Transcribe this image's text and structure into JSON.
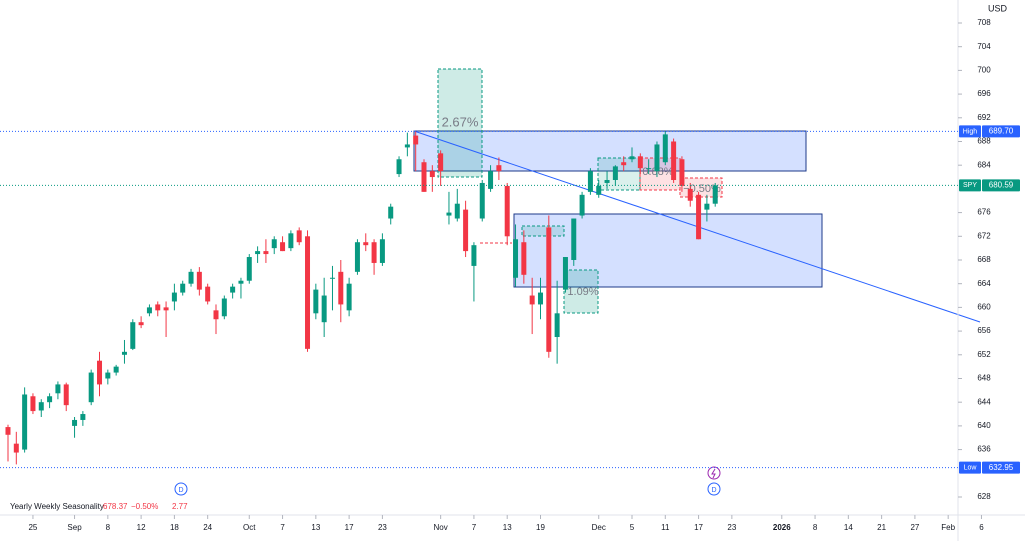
{
  "chart_data": {
    "type": "candlestick",
    "currency": "USD",
    "up_color": "#089981",
    "down_color": "#f23645",
    "grid": false,
    "series": {
      "open": [
        639.8,
        637,
        636,
        645,
        642.6,
        644,
        645.5,
        647,
        640,
        641,
        644,
        651,
        648,
        649,
        652,
        653,
        657.5,
        659,
        660.5,
        660,
        661,
        662.5,
        664,
        666,
        663.5,
        659.5,
        658.5,
        662.5,
        664,
        664.5,
        669,
        669.5,
        670,
        671,
        670,
        673,
        672,
        659,
        657.5,
        665,
        666,
        659.5,
        666,
        671,
        671,
        667.5,
        675,
        682.5,
        687,
        689,
        684.5,
        683,
        686,
        675.5,
        675,
        676.5,
        667,
        675,
        680,
        684,
        680.5,
        665,
        671,
        662,
        660.5,
        673.5,
        655,
        663,
        668,
        675.5,
        679.5,
        679,
        681,
        681.5,
        684.5,
        685,
        685.5,
        683.5,
        683,
        684.5,
        688,
        685,
        680,
        679,
        676.5,
        677.5
      ],
      "high": [
        640.2,
        639,
        646.5,
        645.5,
        644.5,
        645.5,
        647.5,
        647.3,
        641.5,
        642.5,
        649.5,
        652.5,
        649.5,
        650.3,
        654.5,
        658,
        658.5,
        660.5,
        661,
        661,
        664,
        664.5,
        666.5,
        666.8,
        664,
        660.5,
        662,
        664,
        665,
        669,
        670.3,
        671.5,
        672,
        672,
        673,
        673.5,
        673,
        664,
        665,
        667,
        668,
        665,
        671.5,
        672.5,
        671.5,
        672.5,
        677.5,
        685.5,
        689.5,
        689.7,
        685,
        684,
        686.5,
        679.5,
        680,
        678,
        671,
        681.5,
        684,
        685.3,
        681,
        674,
        673,
        665,
        665,
        675.5,
        664.5,
        668.5,
        675,
        679.5,
        683.5,
        681.5,
        683,
        684,
        685.5,
        687,
        686,
        685,
        688,
        689.7,
        688.5,
        685.5,
        681,
        679.5,
        679,
        681
      ],
      "low": [
        634,
        633.5,
        635.5,
        642,
        641.5,
        643,
        644.5,
        642.5,
        638,
        640,
        643.5,
        645,
        647,
        648.5,
        650.5,
        652.8,
        656.5,
        658.5,
        658.5,
        655,
        659.5,
        662,
        663.5,
        662,
        660.5,
        655.5,
        658,
        661.5,
        661.5,
        664,
        667.5,
        667.5,
        669,
        669.5,
        669.5,
        670.5,
        652.5,
        658,
        655,
        659.5,
        657.5,
        658.5,
        665.5,
        669.5,
        665.5,
        667,
        674,
        682,
        685.5,
        683,
        679.5,
        679.5,
        680.5,
        674,
        674.5,
        668.5,
        661,
        674.5,
        679.5,
        681.5,
        670.5,
        663.5,
        664,
        655.5,
        658,
        651.5,
        650.5,
        662.5,
        667,
        675,
        679,
        678.5,
        680,
        680.5,
        683,
        684.5,
        682.5,
        682.5,
        682,
        684,
        681,
        679.5,
        677,
        671.5,
        674.5,
        677
      ],
      "close": [
        638.5,
        635.5,
        645.3,
        642.5,
        644,
        645,
        647,
        643.5,
        641,
        642,
        649,
        647,
        649,
        650,
        652.5,
        657.5,
        657,
        660,
        659.5,
        659.5,
        662.5,
        664,
        666,
        663,
        661,
        658,
        661.5,
        663.5,
        664.5,
        668.5,
        669.5,
        669,
        671.5,
        669.5,
        672.5,
        671,
        653,
        663,
        662,
        665,
        660.5,
        664,
        671,
        670.5,
        667.5,
        671.5,
        677,
        685,
        687.5,
        687.5,
        679.5,
        682,
        683,
        676,
        677.5,
        669.5,
        670.5,
        681,
        683,
        683,
        672,
        671.5,
        665.5,
        660.5,
        662.5,
        652.5,
        659,
        668.5,
        675,
        679,
        683,
        680.5,
        681.5,
        683.8,
        684,
        685.5,
        683.5,
        683.5,
        687.5,
        689.2,
        681.5,
        680.5,
        678,
        671.5,
        677.5,
        680.59
      ]
    },
    "ylim": [
      624.96,
      711.88
    ],
    "yticks": [
      708,
      704,
      700,
      696,
      692,
      688,
      684,
      676,
      672,
      668,
      664,
      660,
      656,
      652,
      648,
      644,
      640,
      636,
      628
    ],
    "xlim": [
      -0.96,
      114.18
    ],
    "xticks": [
      {
        "value": 3,
        "label": "25"
      },
      {
        "value": 8,
        "label": "Sep"
      },
      {
        "value": 12,
        "label": "8"
      },
      {
        "value": 16,
        "label": "12"
      },
      {
        "value": 20,
        "label": "18"
      },
      {
        "value": 24,
        "label": "24"
      },
      {
        "value": 29,
        "label": "Oct"
      },
      {
        "value": 33,
        "label": "7"
      },
      {
        "value": 37,
        "label": "13"
      },
      {
        "value": 41,
        "label": "17"
      },
      {
        "value": 45,
        "label": "23"
      },
      {
        "value": 52,
        "label": "Nov"
      },
      {
        "value": 56,
        "label": "7"
      },
      {
        "value": 60,
        "label": "13"
      },
      {
        "value": 64,
        "label": "19"
      },
      {
        "value": 71,
        "label": "Dec"
      },
      {
        "value": 75,
        "label": "5"
      },
      {
        "value": 79,
        "label": "11"
      },
      {
        "value": 83,
        "label": "17"
      },
      {
        "value": 87,
        "label": "23"
      },
      {
        "value": 93,
        "label": "2026"
      },
      {
        "value": 97,
        "label": "8"
      },
      {
        "value": 101,
        "label": "14"
      },
      {
        "value": 105,
        "label": "21"
      },
      {
        "value": 109,
        "label": "27"
      },
      {
        "value": 113,
        "label": "Feb"
      },
      {
        "value": 117,
        "label": "6"
      }
    ],
    "price_lines": [
      {
        "label": "High",
        "value": 689.7,
        "value_label": "689.70",
        "color": "#2962ff"
      },
      {
        "label": "SPY",
        "value": 680.59,
        "color": "#089981"
      },
      {
        "label": "Low",
        "value": 632.95,
        "color": "#2962ff"
      }
    ],
    "indicator": {
      "name": "Yearly Weekly Seasonality",
      "value": 678.37,
      "change": -0.5,
      "change_label": "−0.50%",
      "extra": 2.77
    },
    "annotations": [
      "2.67%",
      "0.88%",
      "−0.50%",
      "1.09%"
    ],
    "events": [
      "D",
      "D"
    ]
  }
}
